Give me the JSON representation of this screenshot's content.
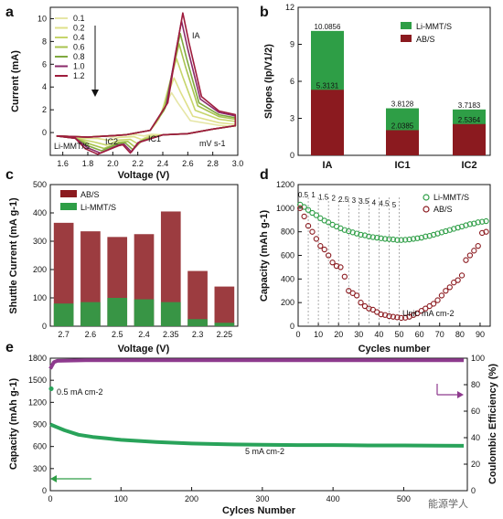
{
  "panels": {
    "a": "a",
    "b": "b",
    "c": "c",
    "d": "d",
    "e": "e"
  },
  "watermark": "能源学人",
  "colors": {
    "green": "#2e9e46",
    "red": "#8b1a1f",
    "purple": "#7b2a7f",
    "green_e": "#29a35a",
    "purple_e": "#8e3a8e"
  },
  "chart_data": [
    {
      "panel": "a",
      "type": "line",
      "xlabel": "Voltage (V)",
      "ylabel": "Current (mA)",
      "xlim": [
        1.5,
        3.0
      ],
      "ylim": [
        -2,
        11
      ],
      "xticks": [
        "1.6",
        "1.8",
        "2.0",
        "2.2",
        "2.4",
        "2.6",
        "2.8",
        "3.0"
      ],
      "yticks": [
        "0",
        "2",
        "4",
        "6",
        "8",
        "10"
      ],
      "legend": [
        "0.1",
        "0.2",
        "0.4",
        "0.6",
        "0.8",
        "1.0",
        "1.2"
      ],
      "legend_colors": [
        "#e6e6a6",
        "#dfe08a",
        "#c6d56b",
        "#a8c34f",
        "#7fa83f",
        "#8a2a6a",
        "#9e1c3c"
      ],
      "annotations": {
        "IA": "IA",
        "IC1": "IC1",
        "IC2": "IC2",
        "unit": "mV s-1",
        "sample": "Li-MMT/S"
      },
      "series": [
        {
          "name": "0.1",
          "peak_a": [
            2.47,
            3.5
          ],
          "peak_c1": [
            2.25,
            -0.3
          ],
          "peak_c2": [
            2.0,
            -0.4
          ]
        },
        {
          "name": "0.2",
          "peak_a": [
            2.49,
            4.8
          ],
          "peak_c1": [
            2.23,
            -0.6
          ],
          "peak_c2": [
            1.98,
            -0.7
          ]
        },
        {
          "name": "0.4",
          "peak_a": [
            2.51,
            6.5
          ],
          "peak_c1": [
            2.2,
            -1.0
          ],
          "peak_c2": [
            1.95,
            -1.1
          ]
        },
        {
          "name": "0.6",
          "peak_a": [
            2.53,
            7.8
          ],
          "peak_c1": [
            2.18,
            -1.3
          ],
          "peak_c2": [
            1.93,
            -1.4
          ]
        },
        {
          "name": "0.8",
          "peak_a": [
            2.54,
            8.7
          ],
          "peak_c1": [
            2.16,
            -1.5
          ],
          "peak_c2": [
            1.91,
            -1.6
          ]
        },
        {
          "name": "1.0",
          "peak_a": [
            2.55,
            9.8
          ],
          "peak_c1": [
            2.15,
            -1.7
          ],
          "peak_c2": [
            1.9,
            -1.8
          ]
        },
        {
          "name": "1.2",
          "peak_a": [
            2.56,
            10.5
          ],
          "peak_c1": [
            2.14,
            -1.8
          ],
          "peak_c2": [
            1.88,
            -1.9
          ]
        }
      ]
    },
    {
      "panel": "b",
      "type": "bar",
      "ylabel": "Slopes (Ip/V1/2)",
      "ylim": [
        0,
        12
      ],
      "yticks": [
        "0",
        "3",
        "6",
        "9",
        "12"
      ],
      "categories": [
        "IA",
        "IC1",
        "IC2"
      ],
      "series": [
        {
          "name": "Li-MMT/S",
          "values": [
            10.0856,
            3.8128,
            3.7183
          ]
        },
        {
          "name": "AB/S",
          "values": [
            5.3131,
            2.0385,
            2.5364
          ]
        }
      ],
      "labels_top": [
        "10.0856",
        "3.8128",
        "3.7183"
      ],
      "labels_mid": [
        "5.3131",
        "2.0385",
        "2.5364"
      ]
    },
    {
      "panel": "c",
      "type": "bar",
      "xlabel": "Voltage (V)",
      "ylabel": "Shuttle Current (mA g-1)",
      "ylim": [
        0,
        500
      ],
      "yticks": [
        "0",
        "100",
        "200",
        "300",
        "400",
        "500"
      ],
      "categories": [
        "2.7",
        "2.6",
        "2.5",
        "2.4",
        "2.35",
        "2.3",
        "2.25"
      ],
      "series": [
        {
          "name": "AB/S",
          "values": [
            365,
            335,
            315,
            325,
            405,
            195,
            140
          ]
        },
        {
          "name": "Li-MMT/S",
          "values": [
            80,
            85,
            100,
            95,
            85,
            25,
            12
          ]
        }
      ]
    },
    {
      "panel": "d",
      "type": "scatter",
      "xlabel": "Cycles number",
      "ylabel": "Capacity (mAh g-1)",
      "xlim": [
        0,
        95
      ],
      "ylim": [
        0,
        1200
      ],
      "xticks": [
        "0",
        "10",
        "20",
        "30",
        "40",
        "50",
        "60",
        "70",
        "80",
        "90"
      ],
      "yticks": [
        "0",
        "200",
        "400",
        "600",
        "800",
        "1000",
        "1200"
      ],
      "rates": [
        "0.5",
        "1",
        "1.5",
        "2",
        "2.5",
        "3",
        "3.5",
        "4",
        "4.5",
        "5"
      ],
      "unit_note": "Unit: mA cm-2",
      "series": [
        {
          "name": "Li-MMT/S",
          "x": [
            1,
            3,
            5,
            7,
            9,
            11,
            13,
            15,
            17,
            19,
            21,
            23,
            25,
            27,
            29,
            31,
            33,
            35,
            37,
            39,
            41,
            43,
            45,
            47,
            49,
            51,
            53,
            55,
            57,
            59,
            61,
            63,
            65,
            67,
            69,
            71,
            73,
            75,
            77,
            79,
            81,
            83,
            85,
            87,
            89,
            91,
            93
          ],
          "y": [
            1030,
            1010,
            985,
            960,
            940,
            915,
            895,
            880,
            860,
            845,
            830,
            815,
            805,
            795,
            785,
            775,
            770,
            760,
            755,
            750,
            745,
            740,
            738,
            735,
            730,
            730,
            732,
            735,
            740,
            745,
            750,
            760,
            765,
            775,
            785,
            795,
            805,
            815,
            825,
            835,
            845,
            855,
            865,
            870,
            880,
            885,
            890
          ]
        },
        {
          "name": "AB/S",
          "x": [
            1,
            3,
            5,
            7,
            9,
            11,
            13,
            15,
            17,
            19,
            21,
            23,
            25,
            27,
            29,
            31,
            33,
            35,
            37,
            39,
            41,
            43,
            45,
            47,
            49,
            51,
            53,
            55,
            57,
            59,
            61,
            63,
            65,
            67,
            69,
            71,
            73,
            75,
            77,
            79,
            81,
            83,
            85,
            87,
            89,
            91,
            93
          ],
          "y": [
            1000,
            930,
            850,
            800,
            740,
            680,
            650,
            600,
            540,
            510,
            500,
            420,
            300,
            280,
            260,
            200,
            170,
            150,
            140,
            120,
            100,
            95,
            85,
            80,
            75,
            70,
            72,
            80,
            95,
            110,
            130,
            150,
            170,
            190,
            220,
            260,
            300,
            330,
            370,
            390,
            430,
            560,
            600,
            640,
            680,
            790,
            800
          ]
        }
      ]
    },
    {
      "panel": "e",
      "type": "line",
      "xlabel": "Cylces Number",
      "ylabel": "Capacity (mAh g-1)",
      "y2label": "Coulombic Efficiency (%)",
      "xlim": [
        0,
        590
      ],
      "ylim": [
        0,
        1800
      ],
      "y2lim": [
        0,
        100
      ],
      "xticks": [
        "0",
        "100",
        "200",
        "300",
        "400",
        "500"
      ],
      "yticks": [
        "0",
        "300",
        "600",
        "900",
        "1200",
        "1500",
        "1800"
      ],
      "y2ticks": [
        "0",
        "20",
        "40",
        "60",
        "80",
        "100"
      ],
      "annotations": {
        "low_rate": "0.5 mA cm-2",
        "high_rate": "5 mA cm-2"
      },
      "series": [
        {
          "name": "Capacity",
          "x": [
            0,
            5,
            10,
            20,
            40,
            60,
            80,
            100,
            150,
            200,
            250,
            300,
            350,
            400,
            450,
            500,
            550,
            585
          ],
          "y": [
            900,
            880,
            860,
            820,
            760,
            730,
            710,
            690,
            660,
            640,
            630,
            625,
            620,
            620,
            615,
            615,
            612,
            610
          ]
        },
        {
          "name": "Coulombic Efficiency",
          "x": [
            0,
            5,
            10,
            50,
            100,
            200,
            300,
            400,
            500,
            585
          ],
          "y": [
            92,
            97,
            98,
            98.5,
            98.5,
            98.5,
            98.5,
            98.5,
            98.5,
            98.5
          ]
        }
      ],
      "first_point": {
        "x": 0,
        "y": 1385
      }
    }
  ]
}
